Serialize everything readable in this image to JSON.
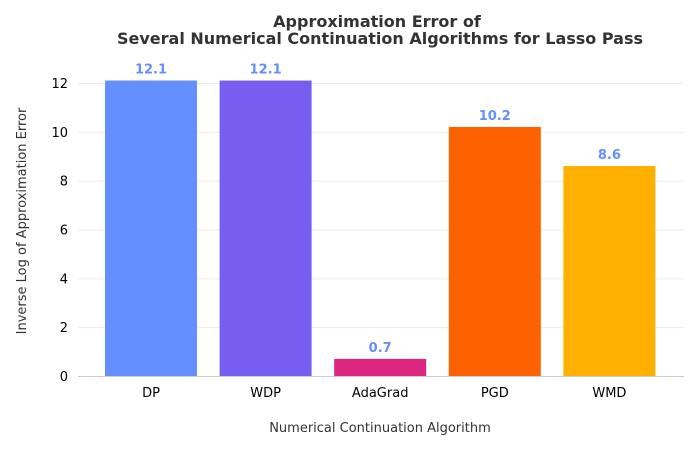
{
  "chart_data": {
    "type": "bar",
    "title_lines": [
      "Approximation Error of",
      "Several Numerical Continuation Algorithms for Lasso Pass"
    ],
    "xlabel": "Numerical Continuation Algorithm",
    "ylabel": "Inverse Log of Approximation Error",
    "categories": [
      "DP",
      "WDP",
      "AdaGrad",
      "PGD",
      "WMD"
    ],
    "values": [
      12.1,
      12.1,
      0.7,
      10.2,
      8.6
    ],
    "value_labels": [
      "12.1",
      "12.1",
      "0.7",
      "10.2",
      "8.6"
    ],
    "bar_colors": [
      "#648FFF",
      "#785EF0",
      "#DC267F",
      "#FE6100",
      "#FFB000"
    ],
    "data_label_color": "#648FFF",
    "ylim": [
      0,
      13
    ],
    "yticks": [
      0,
      2,
      4,
      6,
      8,
      10,
      12
    ],
    "ytick_labels": [
      "0",
      "2",
      "4",
      "6",
      "8",
      "10",
      "12"
    ],
    "grid": true
  }
}
